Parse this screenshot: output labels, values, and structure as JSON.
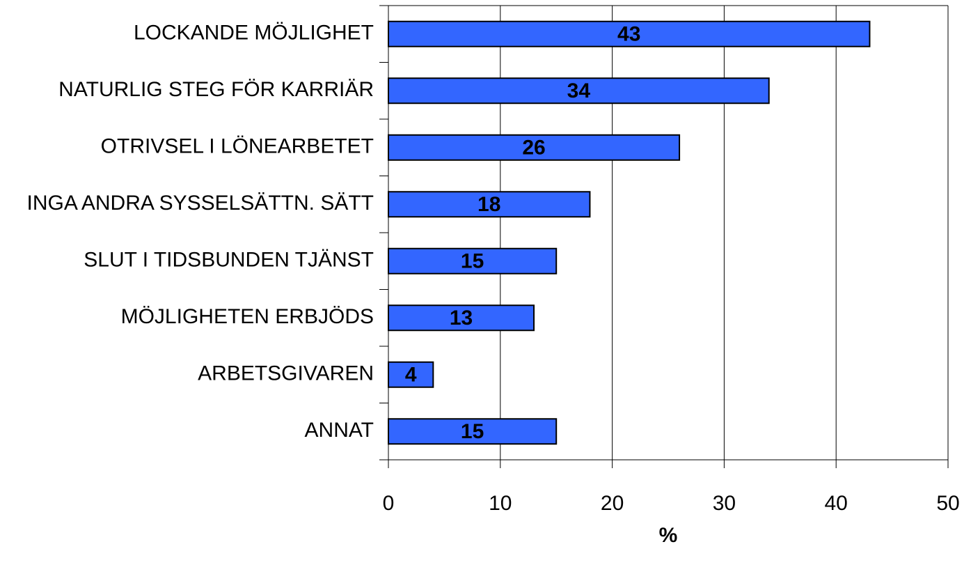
{
  "chart_data": {
    "type": "bar",
    "orientation": "horizontal",
    "categories": [
      "LOCKANDE MÖJLIGHET",
      "NATURLIG STEG FÖR KARRIÄR",
      "OTRIVSEL I LÖNEARBETET",
      "INGA ANDRA SYSSELSÄTTN. SÄTT",
      "SLUT I TIDSBUNDEN TJÄNST",
      "MÖJLIGHETEN ERBJÖDS",
      "ARBETSGIVAREN",
      "ANNAT"
    ],
    "values": [
      43,
      34,
      26,
      18,
      15,
      13,
      4,
      15
    ],
    "color": "#3366ff",
    "xlabel": "%",
    "xlim": [
      0,
      50
    ],
    "xticks": [
      0,
      10,
      20,
      30,
      40,
      50
    ],
    "grid": true
  }
}
